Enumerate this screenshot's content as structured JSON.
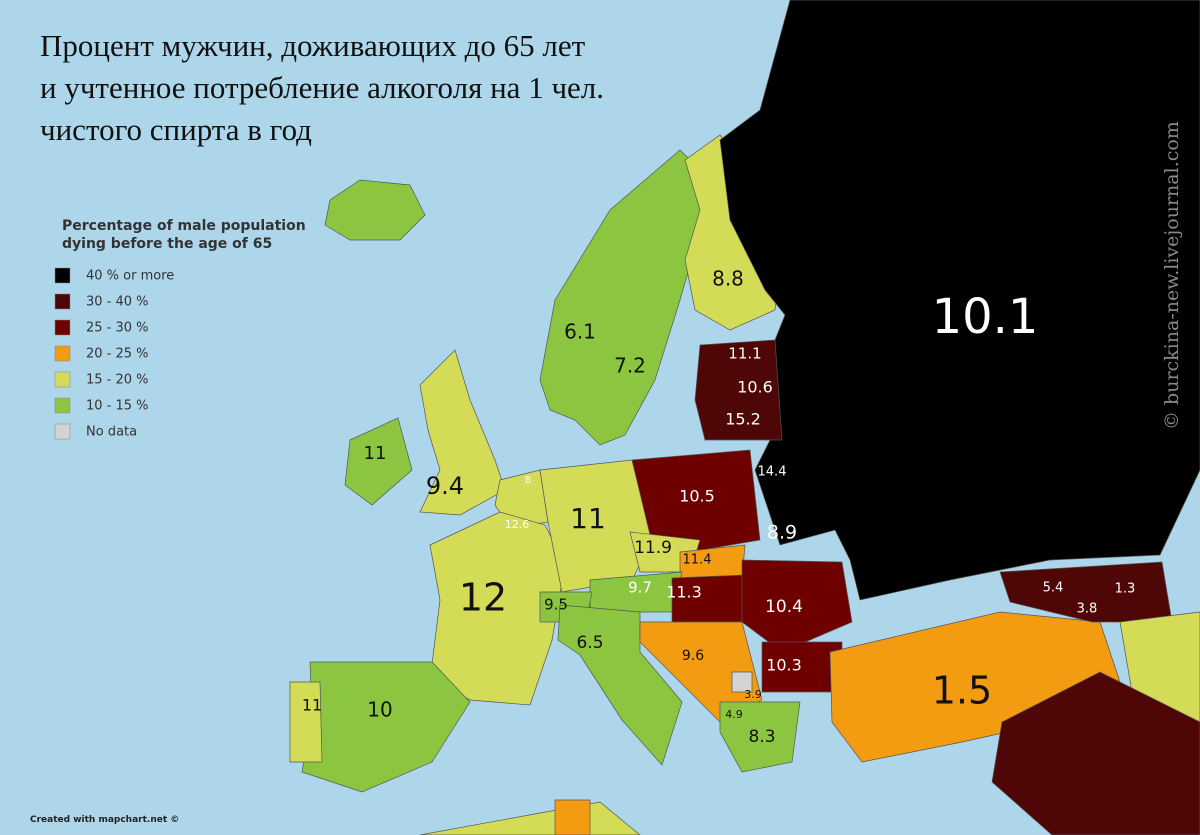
{
  "title": [
    "Процент мужчин, доживающих до 65 лет",
    "и учтенное потребление алкоголя на 1 чел.",
    "чистого спирта в год"
  ],
  "watermark": "© burckina-new.livejournal.com",
  "legend": {
    "title": [
      "Percentage of male population",
      "dying before the age of 65"
    ],
    "items": [
      {
        "label": "40 % or more",
        "color": "#000000"
      },
      {
        "label": "30 - 40 %",
        "color": "#4e0606"
      },
      {
        "label": "25 - 30 %",
        "color": "#6e0000"
      },
      {
        "label": "20 - 25 %",
        "color": "#f39c12"
      },
      {
        "label": "15 - 20 %",
        "color": "#d3db57"
      },
      {
        "label": "10 - 15 %",
        "color": "#8cc640"
      },
      {
        "label": "No data",
        "color": "#d3d3d3"
      }
    ]
  },
  "labels": [
    10.1,
    8.8,
    6.1,
    7.2,
    11.1,
    10.6,
    15.2,
    14.4,
    10.5,
    8.9,
    11,
    9.4,
    8,
    12.6,
    11,
    11.9,
    11.4,
    9.7,
    11.3,
    10.4,
    9.5,
    6.5,
    12,
    9.6,
    10.3,
    3.9,
    4.9,
    8.3,
    11,
    10,
    1.5,
    5.4,
    3.8,
    1.3
  ],
  "footer": "Created with mapchart.net ©"
}
